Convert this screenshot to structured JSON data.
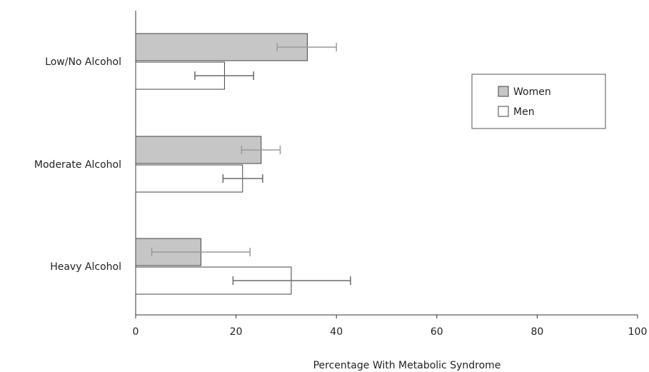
{
  "chart_data": {
    "type": "bar",
    "orientation": "horizontal",
    "title": "",
    "xlabel": "Percentage With Metabolic Syndrome",
    "ylabel": "",
    "xlim": [
      0,
      100
    ],
    "xticks": [
      0,
      20,
      40,
      60,
      80,
      100
    ],
    "grid": false,
    "legend": "right",
    "categories": [
      "Low/No Alcohol",
      "Moderate Alcohol",
      "Heavy Alcohol"
    ],
    "series": [
      {
        "name": "Women",
        "color": "#c6c6c6",
        "values": [
          34.2,
          25.0,
          13.0
        ],
        "error_low": [
          28.2,
          21.1,
          3.2
        ],
        "error_high": [
          40.0,
          28.8,
          22.8
        ],
        "error_color": "#9a9a9a"
      },
      {
        "name": "Men",
        "color": "#ffffff",
        "values": [
          17.7,
          21.3,
          31.0
        ],
        "error_low": [
          11.8,
          17.4,
          19.4
        ],
        "error_high": [
          23.5,
          25.3,
          42.8
        ],
        "error_color": "#6a6a6a"
      }
    ]
  }
}
